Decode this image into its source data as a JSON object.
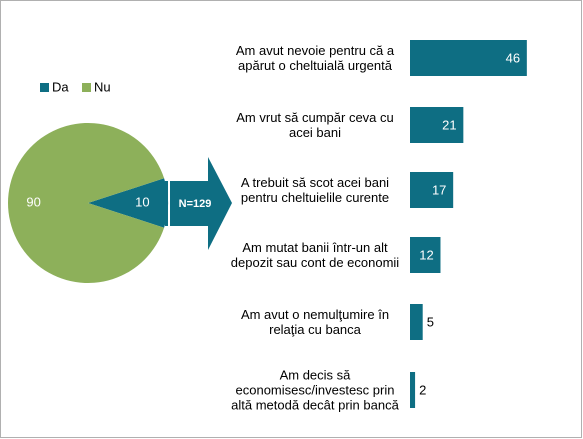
{
  "chart_data": [
    {
      "type": "pie",
      "categories": [
        "Da",
        "Nu"
      ],
      "values": [
        10,
        90
      ],
      "colors": [
        "#0e6e83",
        "#8db05a"
      ],
      "legend": true,
      "annotation": "N=129"
    },
    {
      "type": "bar",
      "orientation": "horizontal",
      "color": "#0e6e83",
      "categories": [
        "Am avut nevoie pentru că a apărut o cheltuială urgentă",
        "Am vrut să cumpăr ceva cu acei bani",
        "A trebuit să scot acei bani pentru cheltuielile curente",
        "Am mutat banii într-un alt depozit sau cont de economii",
        "Am avut o nemulţumire în relaţia cu banca",
        "Am decis să economisesc/investesc prin altă metodă decât prin bancă"
      ],
      "values": [
        46,
        21,
        17,
        12,
        5,
        2
      ]
    }
  ]
}
